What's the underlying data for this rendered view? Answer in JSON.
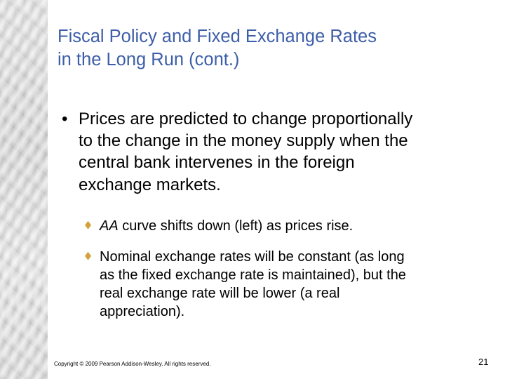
{
  "slide": {
    "title_lines": [
      "Fiscal Policy and Fixed Exchange Rates",
      "in the Long Run (cont.)"
    ],
    "bullet": {
      "marker": "•",
      "lines": [
        "Prices are predicted to change proportionally",
        "to the change in the money supply when the",
        "central bank intervenes in the foreign",
        "exchange markets."
      ]
    },
    "sub_bullets": [
      {
        "emphasis": "AA",
        "first_line_rest": " curve shifts down (left) as prices rise.",
        "lines": []
      },
      {
        "emphasis": "",
        "first_line_rest": "Nominal exchange rates will be constant (as long",
        "lines": [
          "as the fixed exchange rate is maintained), but the",
          "real exchange rate will be lower (a real",
          "appreciation)."
        ]
      }
    ],
    "footer": "Copyright © 2009 Pearson Addison-Wesley. All rights reserved.",
    "page_number": "21",
    "colors": {
      "title": "#3d5ea8",
      "sub_bullet_marker": "#d4a23a"
    },
    "icons": {
      "sub_bullet_marker": "diamond-bullet-icon",
      "background": "marble-texture"
    }
  }
}
